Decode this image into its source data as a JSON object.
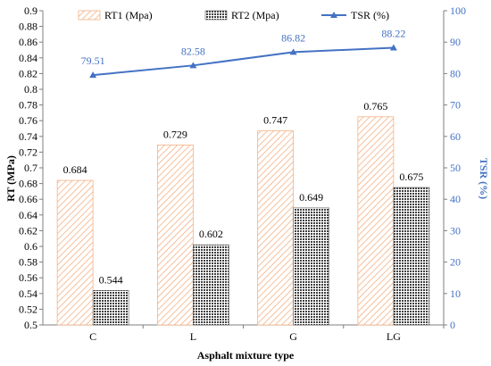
{
  "chart_data": {
    "type": "bar",
    "categories": [
      "C",
      "L",
      "G",
      "LG"
    ],
    "series": [
      {
        "name": "RT1 (Mpa)",
        "values": [
          0.684,
          0.729,
          0.747,
          0.765
        ],
        "labels": [
          "0.684",
          "0.729",
          "0.747",
          "0.765"
        ],
        "axis": "left",
        "kind": "bar",
        "color": "#f4b183",
        "pattern": "diagonal-hatch"
      },
      {
        "name": "RT2 (Mpa)",
        "values": [
          0.544,
          0.602,
          0.649,
          0.675
        ],
        "labels": [
          "0.544",
          "0.602",
          "0.649",
          "0.675"
        ],
        "axis": "left",
        "kind": "bar",
        "color": "#595959",
        "pattern": "crosshatch"
      },
      {
        "name": "TSR (%)",
        "values": [
          79.51,
          82.58,
          86.82,
          88.22
        ],
        "labels": [
          "79.51",
          "82.58",
          "86.82",
          "88.22"
        ],
        "axis": "right",
        "kind": "line",
        "color": "#4472c4",
        "marker": "triangle"
      }
    ],
    "xlabel": "Asphalt mixture type",
    "ylabel": "RT (MPa)",
    "y2label": "TSR (%)",
    "ylim": [
      0.5,
      0.9
    ],
    "y2lim": [
      0,
      100
    ],
    "y_ticks": [
      "0.5",
      "0.52",
      "0.54",
      "0.56",
      "0.58",
      "0.6",
      "0.62",
      "0.64",
      "0.66",
      "0.68",
      "0.7",
      "0.72",
      "0.74",
      "0.76",
      "0.78",
      "0.8",
      "0.82",
      "0.84",
      "0.86",
      "0.88",
      "0.9"
    ],
    "y2_ticks": [
      "0",
      "10",
      "20",
      "30",
      "40",
      "50",
      "60",
      "70",
      "80",
      "90",
      "100"
    ],
    "grid": false,
    "legend_position": "top"
  }
}
